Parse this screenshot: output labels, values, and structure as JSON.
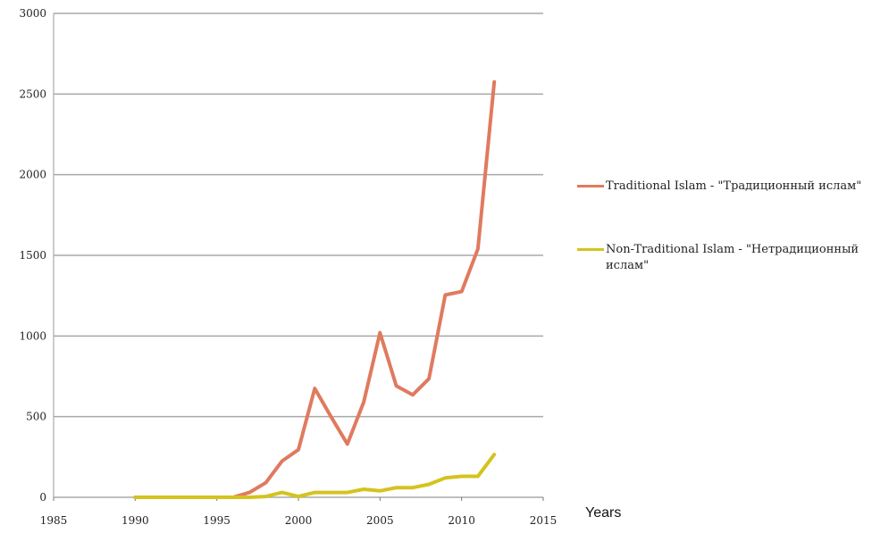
{
  "chart_data": {
    "type": "line",
    "title": "",
    "xlabel": "Years",
    "ylabel": "",
    "xlim": [
      1985,
      2015
    ],
    "ylim": [
      0,
      3000
    ],
    "xticks": [
      1985,
      1990,
      1995,
      2000,
      2005,
      2010,
      2015
    ],
    "yticks": [
      0,
      500,
      1000,
      1500,
      2000,
      2500,
      3000
    ],
    "grid": "horizontal",
    "legend_position": "right",
    "series": [
      {
        "name": "Traditional Islam -  \"Традиционный ислам\"",
        "color": "#e07a5f",
        "x": [
          1990,
          1991,
          1992,
          1993,
          1994,
          1995,
          1996,
          1997,
          1998,
          1999,
          2000,
          2001,
          2002,
          2003,
          2004,
          2005,
          2006,
          2007,
          2008,
          2009,
          2010,
          2011,
          2012
        ],
        "values": [
          0,
          0,
          0,
          0,
          0,
          0,
          0,
          30,
          90,
          225,
          295,
          675,
          500,
          330,
          590,
          1020,
          690,
          635,
          735,
          1255,
          1275,
          1540,
          2575
        ]
      },
      {
        "name": "Non-Traditional Islam - \"Нетрадиционный ислам\"",
        "color": "#d4c31e",
        "x": [
          1990,
          1991,
          1992,
          1993,
          1994,
          1995,
          1996,
          1997,
          1998,
          1999,
          2000,
          2001,
          2002,
          2003,
          2004,
          2005,
          2006,
          2007,
          2008,
          2009,
          2010,
          2011,
          2012
        ],
        "values": [
          0,
          0,
          0,
          0,
          0,
          0,
          0,
          0,
          5,
          30,
          5,
          30,
          30,
          30,
          50,
          40,
          60,
          60,
          80,
          120,
          130,
          130,
          265
        ]
      }
    ]
  }
}
